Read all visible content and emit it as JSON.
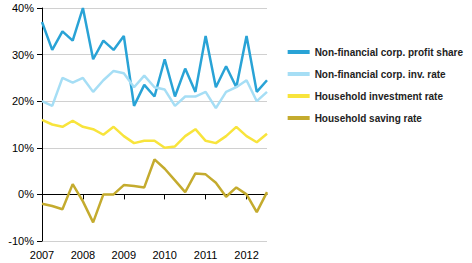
{
  "chart_data": {
    "type": "line",
    "categories": [
      "2007",
      null,
      null,
      null,
      "2008",
      null,
      null,
      null,
      "2009",
      null,
      null,
      null,
      "2010",
      null,
      null,
      null,
      "2011",
      null,
      null,
      null,
      "2012",
      null,
      null
    ],
    "series": [
      {
        "name": "Non-financial corp. profit share",
        "color": "#29a3d6",
        "values": [
          37,
          31,
          35,
          33,
          40,
          29,
          33,
          31,
          34,
          19,
          23.5,
          21,
          29,
          21,
          27,
          22,
          34,
          23,
          27.5,
          23,
          34,
          22,
          24.5
        ]
      },
      {
        "name": "Non-financial corp. inv. rate",
        "color": "#a6def5",
        "values": [
          20,
          19,
          25,
          24,
          25,
          22,
          24.5,
          26.5,
          26,
          23,
          25.5,
          23,
          22.5,
          19,
          21,
          21,
          22,
          18.5,
          22,
          23,
          24.5,
          20,
          22
        ]
      },
      {
        "name": "Household investment rate",
        "color": "#f8e43c",
        "values": [
          16,
          15,
          14.5,
          15.8,
          14.5,
          14,
          12.8,
          14.5,
          12.5,
          11,
          11.5,
          11.5,
          10,
          10.3,
          12.5,
          14,
          11.5,
          11,
          12.5,
          14.5,
          12.5,
          11.2,
          13
        ]
      },
      {
        "name": "Household saving rate",
        "color": "#c4ab2e",
        "values": [
          -2,
          -2.5,
          -3.2,
          2.2,
          -1.5,
          -6,
          0,
          0,
          2,
          1.8,
          1.5,
          7.5,
          5.5,
          3,
          0.5,
          4.5,
          4.3,
          2.5,
          -0.5,
          1.5,
          0,
          -3.8,
          0.5
        ]
      }
    ],
    "ylim": [
      -10,
      40
    ],
    "yticks": [
      {
        "value": -10,
        "label": "-10%"
      },
      {
        "value": 0,
        "label": "0%"
      },
      {
        "value": 10,
        "label": "10%"
      },
      {
        "value": 20,
        "label": "20%"
      },
      {
        "value": 30,
        "label": "30%"
      },
      {
        "value": 40,
        "label": "40%"
      }
    ],
    "grid": true,
    "legend": "right"
  }
}
